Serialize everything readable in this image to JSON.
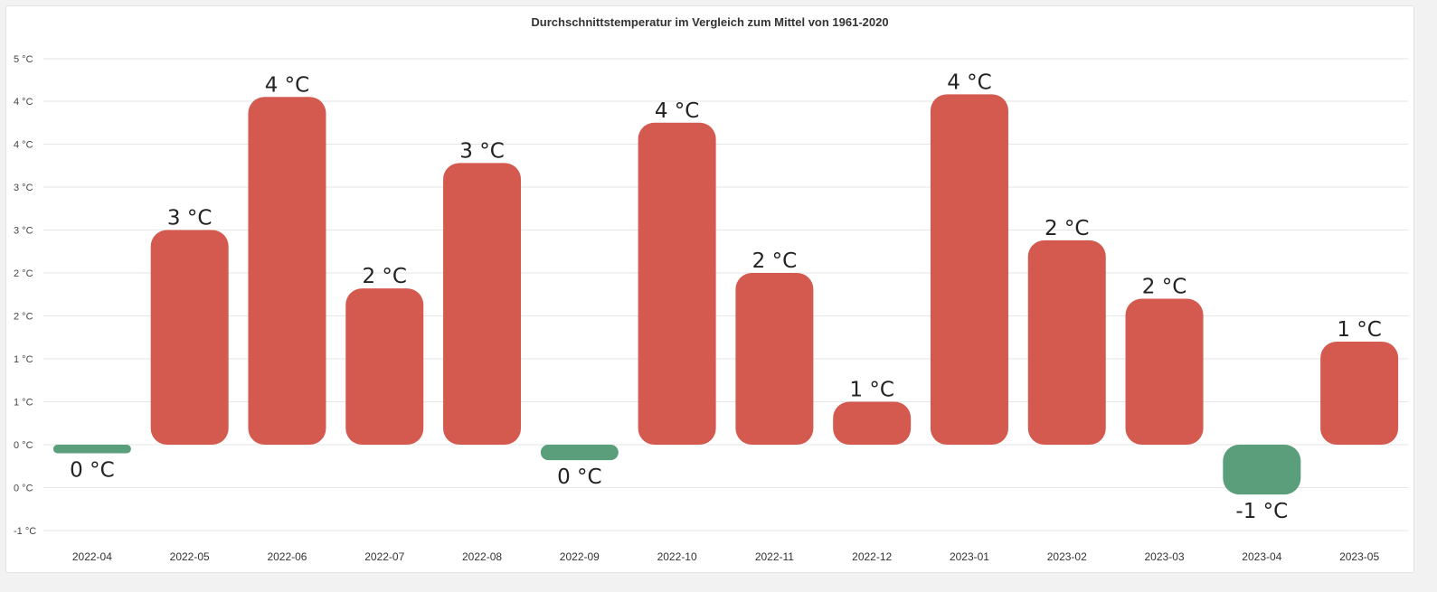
{
  "chart_data": {
    "type": "bar",
    "title": "Durchschnittstemperatur im Vergleich zum Mittel von 1961-2020",
    "xlabel": "",
    "ylabel": "",
    "ylim": [
      -1,
      5
    ],
    "y_ticks": [
      "5 °C",
      "4 °C",
      "4 °C",
      "3 °C",
      "3 °C",
      "2 °C",
      "2 °C",
      "1 °C",
      "1 °C",
      "0 °C",
      "0 °C",
      "-1 °C"
    ],
    "y_tick_values": [
      4.5,
      4.0,
      3.5,
      3.0,
      2.5,
      2.0,
      1.5,
      1.0,
      0.5,
      0.0,
      -0.5,
      -1.0
    ],
    "categories": [
      "2022-04",
      "2022-05",
      "2022-06",
      "2022-07",
      "2022-08",
      "2022-09",
      "2022-10",
      "2022-11",
      "2022-12",
      "2023-01",
      "2023-02",
      "2023-03",
      "2023-04",
      "2023-05"
    ],
    "values": [
      -0.1,
      2.5,
      4.05,
      1.82,
      3.28,
      -0.18,
      3.75,
      2.0,
      0.5,
      4.08,
      2.38,
      1.7,
      -0.58,
      1.2
    ],
    "data_labels": [
      "0 °C",
      "3 °C",
      "4 °C",
      "2 °C",
      "3 °C",
      "0 °C",
      "4 °C",
      "2 °C",
      "1 °C",
      "4 °C",
      "2 °C",
      "2 °C",
      "-1 °C",
      "1 °C"
    ],
    "grid": true,
    "legend": "none",
    "colors": {
      "positive": "#d45a50",
      "negative": "#5a9e7c"
    }
  }
}
